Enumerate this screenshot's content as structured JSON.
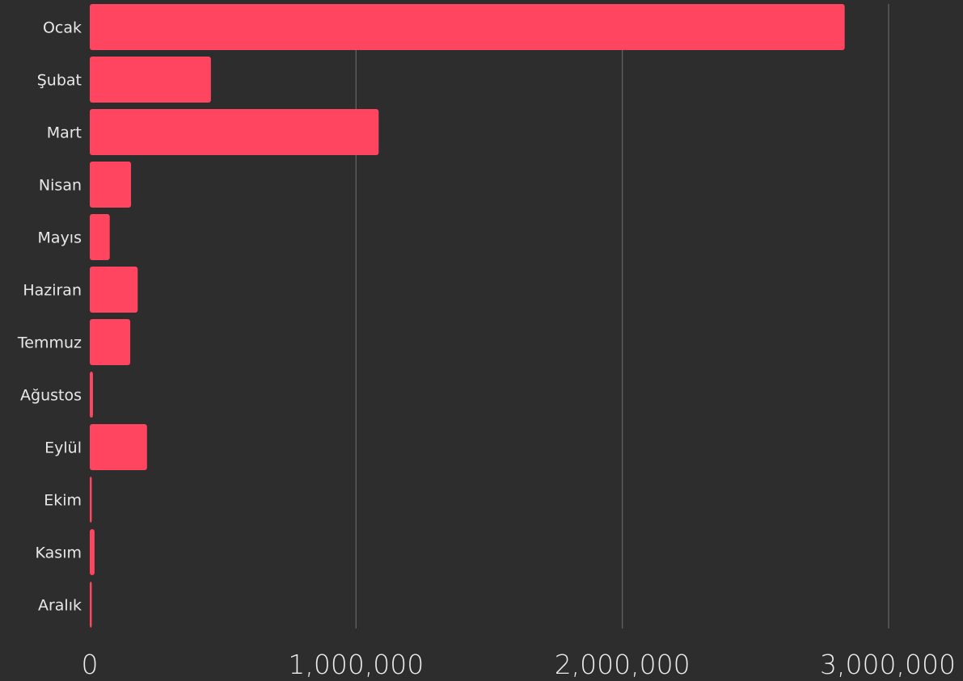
{
  "chart_data": {
    "type": "bar",
    "orientation": "horizontal",
    "categories": [
      "Ocak",
      "Şubat",
      "Mart",
      "Nisan",
      "Mayıs",
      "Haziran",
      "Temmuz",
      "Ağustos",
      "Eylül",
      "Ekim",
      "Kasım",
      "Aralık"
    ],
    "values": [
      2835000,
      455000,
      1085000,
      155000,
      75000,
      180000,
      152000,
      12000,
      215000,
      4000,
      18000,
      7000
    ],
    "x_ticks": [
      0,
      1000000,
      2000000,
      3000000
    ],
    "x_tick_labels": [
      "0",
      "1,000,000",
      "2,000,000",
      "3,000,000"
    ],
    "xlim": [
      0,
      3000000
    ],
    "title": "",
    "xlabel": "",
    "ylabel": "",
    "grid": true,
    "legend": "none",
    "colors": {
      "bar": "#ff4560",
      "background": "#2d2d2d",
      "grid": "#5f5f5f",
      "text": "#e8e8e8"
    }
  }
}
